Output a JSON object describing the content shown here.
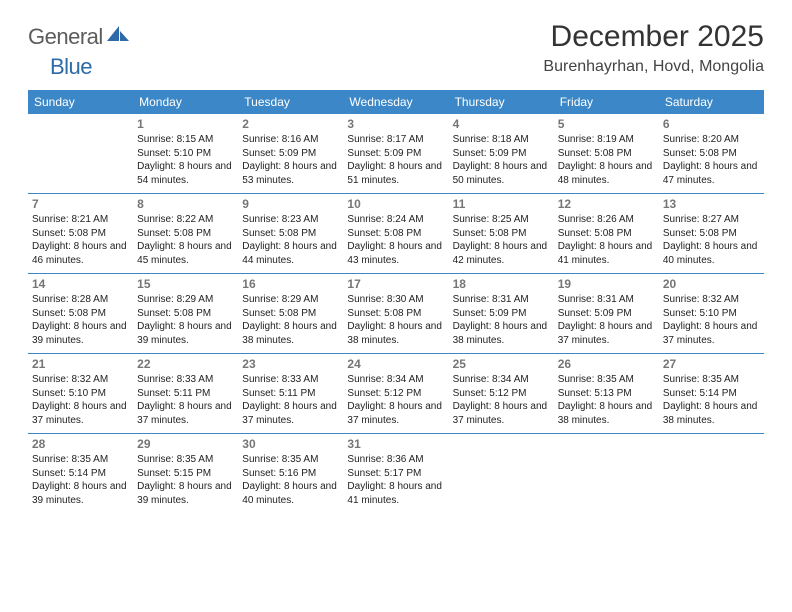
{
  "logo": {
    "text1": "General",
    "text2": "Blue",
    "color1": "#5c5c5c",
    "color2": "#2f6aa8"
  },
  "title": "December 2025",
  "location": "Burenhayrhan, Hovd, Mongolia",
  "colors": {
    "header_bg": "#3c87c7",
    "header_text": "#ffffff",
    "day_number": "#757575",
    "divider": "#3c87c7",
    "body_text": "#222222",
    "background": "#ffffff"
  },
  "fonts": {
    "title_size": 30,
    "location_size": 16,
    "weekday_size": 12,
    "daynum_size": 12,
    "info_size": 10
  },
  "weekdays": [
    "Sunday",
    "Monday",
    "Tuesday",
    "Wednesday",
    "Thursday",
    "Friday",
    "Saturday"
  ],
  "weeks": [
    [
      null,
      {
        "n": "1",
        "sunrise": "8:15 AM",
        "sunset": "5:10 PM",
        "daylight": "8 hours and 54 minutes."
      },
      {
        "n": "2",
        "sunrise": "8:16 AM",
        "sunset": "5:09 PM",
        "daylight": "8 hours and 53 minutes."
      },
      {
        "n": "3",
        "sunrise": "8:17 AM",
        "sunset": "5:09 PM",
        "daylight": "8 hours and 51 minutes."
      },
      {
        "n": "4",
        "sunrise": "8:18 AM",
        "sunset": "5:09 PM",
        "daylight": "8 hours and 50 minutes."
      },
      {
        "n": "5",
        "sunrise": "8:19 AM",
        "sunset": "5:08 PM",
        "daylight": "8 hours and 48 minutes."
      },
      {
        "n": "6",
        "sunrise": "8:20 AM",
        "sunset": "5:08 PM",
        "daylight": "8 hours and 47 minutes."
      }
    ],
    [
      {
        "n": "7",
        "sunrise": "8:21 AM",
        "sunset": "5:08 PM",
        "daylight": "8 hours and 46 minutes."
      },
      {
        "n": "8",
        "sunrise": "8:22 AM",
        "sunset": "5:08 PM",
        "daylight": "8 hours and 45 minutes."
      },
      {
        "n": "9",
        "sunrise": "8:23 AM",
        "sunset": "5:08 PM",
        "daylight": "8 hours and 44 minutes."
      },
      {
        "n": "10",
        "sunrise": "8:24 AM",
        "sunset": "5:08 PM",
        "daylight": "8 hours and 43 minutes."
      },
      {
        "n": "11",
        "sunrise": "8:25 AM",
        "sunset": "5:08 PM",
        "daylight": "8 hours and 42 minutes."
      },
      {
        "n": "12",
        "sunrise": "8:26 AM",
        "sunset": "5:08 PM",
        "daylight": "8 hours and 41 minutes."
      },
      {
        "n": "13",
        "sunrise": "8:27 AM",
        "sunset": "5:08 PM",
        "daylight": "8 hours and 40 minutes."
      }
    ],
    [
      {
        "n": "14",
        "sunrise": "8:28 AM",
        "sunset": "5:08 PM",
        "daylight": "8 hours and 39 minutes."
      },
      {
        "n": "15",
        "sunrise": "8:29 AM",
        "sunset": "5:08 PM",
        "daylight": "8 hours and 39 minutes."
      },
      {
        "n": "16",
        "sunrise": "8:29 AM",
        "sunset": "5:08 PM",
        "daylight": "8 hours and 38 minutes."
      },
      {
        "n": "17",
        "sunrise": "8:30 AM",
        "sunset": "5:08 PM",
        "daylight": "8 hours and 38 minutes."
      },
      {
        "n": "18",
        "sunrise": "8:31 AM",
        "sunset": "5:09 PM",
        "daylight": "8 hours and 38 minutes."
      },
      {
        "n": "19",
        "sunrise": "8:31 AM",
        "sunset": "5:09 PM",
        "daylight": "8 hours and 37 minutes."
      },
      {
        "n": "20",
        "sunrise": "8:32 AM",
        "sunset": "5:10 PM",
        "daylight": "8 hours and 37 minutes."
      }
    ],
    [
      {
        "n": "21",
        "sunrise": "8:32 AM",
        "sunset": "5:10 PM",
        "daylight": "8 hours and 37 minutes."
      },
      {
        "n": "22",
        "sunrise": "8:33 AM",
        "sunset": "5:11 PM",
        "daylight": "8 hours and 37 minutes."
      },
      {
        "n": "23",
        "sunrise": "8:33 AM",
        "sunset": "5:11 PM",
        "daylight": "8 hours and 37 minutes."
      },
      {
        "n": "24",
        "sunrise": "8:34 AM",
        "sunset": "5:12 PM",
        "daylight": "8 hours and 37 minutes."
      },
      {
        "n": "25",
        "sunrise": "8:34 AM",
        "sunset": "5:12 PM",
        "daylight": "8 hours and 37 minutes."
      },
      {
        "n": "26",
        "sunrise": "8:35 AM",
        "sunset": "5:13 PM",
        "daylight": "8 hours and 38 minutes."
      },
      {
        "n": "27",
        "sunrise": "8:35 AM",
        "sunset": "5:14 PM",
        "daylight": "8 hours and 38 minutes."
      }
    ],
    [
      {
        "n": "28",
        "sunrise": "8:35 AM",
        "sunset": "5:14 PM",
        "daylight": "8 hours and 39 minutes."
      },
      {
        "n": "29",
        "sunrise": "8:35 AM",
        "sunset": "5:15 PM",
        "daylight": "8 hours and 39 minutes."
      },
      {
        "n": "30",
        "sunrise": "8:35 AM",
        "sunset": "5:16 PM",
        "daylight": "8 hours and 40 minutes."
      },
      {
        "n": "31",
        "sunrise": "8:36 AM",
        "sunset": "5:17 PM",
        "daylight": "8 hours and 41 minutes."
      },
      null,
      null,
      null
    ]
  ],
  "labels": {
    "sunrise": "Sunrise:",
    "sunset": "Sunset:",
    "daylight": "Daylight:"
  }
}
